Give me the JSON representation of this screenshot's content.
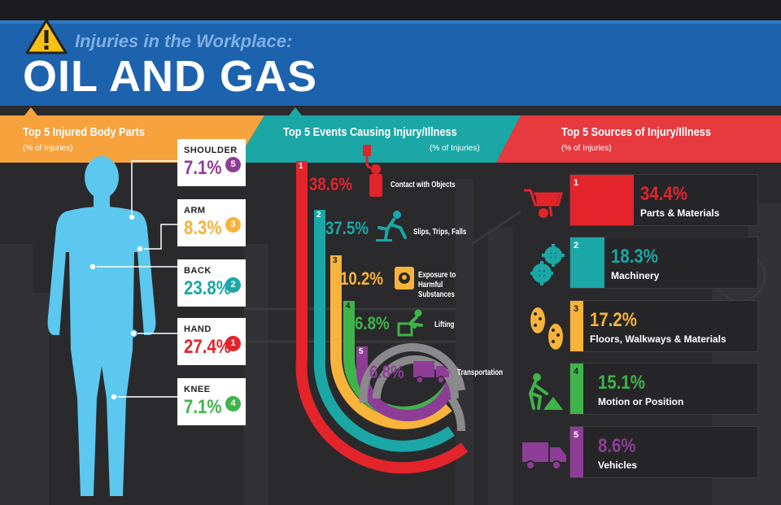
{
  "header": {
    "subtitle": "Injuries in the Workplace:",
    "title": "OIL AND GAS"
  },
  "colors": {
    "orange": "#f6a23d",
    "teal": "#1ba7a6",
    "red": "#e63a3f",
    "crimson": "#e3242b",
    "yellow": "#f8b33b",
    "green": "#3fb449",
    "purple": "#8e3d97",
    "gray": "#8a8a8c",
    "body": "#5cc8ef",
    "blue": "#1d62ad"
  },
  "body_parts": {
    "title": "Top 5 Injured Body Parts",
    "unit": "(% of Injuries)",
    "items": [
      {
        "label": "SHOULDER",
        "value": "7.1%",
        "rank": "5",
        "color": "#8e3d97"
      },
      {
        "label": "ARM",
        "value": "8.3%",
        "rank": "3",
        "color": "#f8b33b"
      },
      {
        "label": "BACK",
        "value": "23.8%",
        "rank": "2",
        "color": "#1ba7a6"
      },
      {
        "label": "HAND",
        "value": "27.4%",
        "rank": "1",
        "color": "#e3242b"
      },
      {
        "label": "KNEE",
        "value": "7.1%",
        "rank": "4",
        "color": "#3fb449"
      }
    ]
  },
  "events": {
    "title": "Top 5 Events Causing Injury/Illness",
    "unit": "(% of Injuries)",
    "items": [
      {
        "rank": "1",
        "value": "38.6%",
        "label": "Contact with Objects",
        "color": "#e3242b",
        "icon": "hook-icon"
      },
      {
        "rank": "2",
        "value": "37.5%",
        "label": "Slips, Trips, Falls",
        "color": "#1ba7a6",
        "icon": "falling-person-icon"
      },
      {
        "rank": "3",
        "value": "10.2%",
        "label": "Exposure to Harmful Substances",
        "color": "#f8b33b",
        "icon": "hazard-barrel-icon"
      },
      {
        "rank": "4",
        "value": "6.8%",
        "label": "Lifting",
        "color": "#3fb449",
        "icon": "lifting-person-icon"
      },
      {
        "rank": "5",
        "value": "6.8%",
        "label": "Transportation",
        "color": "#8e3d97",
        "icon": "truck-icon"
      }
    ]
  },
  "sources": {
    "title": "Top 5 Sources of Injury/Illness",
    "unit": "(% of Injuries)",
    "items": [
      {
        "rank": "1",
        "value": "34.4%",
        "label": "Parts & Materials",
        "color": "#e3242b",
        "icon": "wheelbarrow-icon",
        "share": 0.344
      },
      {
        "rank": "2",
        "value": "18.3%",
        "label": "Machinery",
        "color": "#1ba7a6",
        "icon": "gears-icon",
        "share": 0.183
      },
      {
        "rank": "3",
        "value": "17.2%",
        "label": "Floors, Walkways & Materials",
        "color": "#f8b33b",
        "icon": "footprints-icon",
        "share": 0.172
      },
      {
        "rank": "4",
        "value": "15.1%",
        "label": "Motion or Position",
        "color": "#3fb449",
        "icon": "worker-shovel-icon",
        "share": 0.151
      },
      {
        "rank": "5",
        "value": "8.6%",
        "label": "Vehicles",
        "color": "#8e3d97",
        "icon": "truck-icon",
        "share": 0.086
      }
    ]
  }
}
